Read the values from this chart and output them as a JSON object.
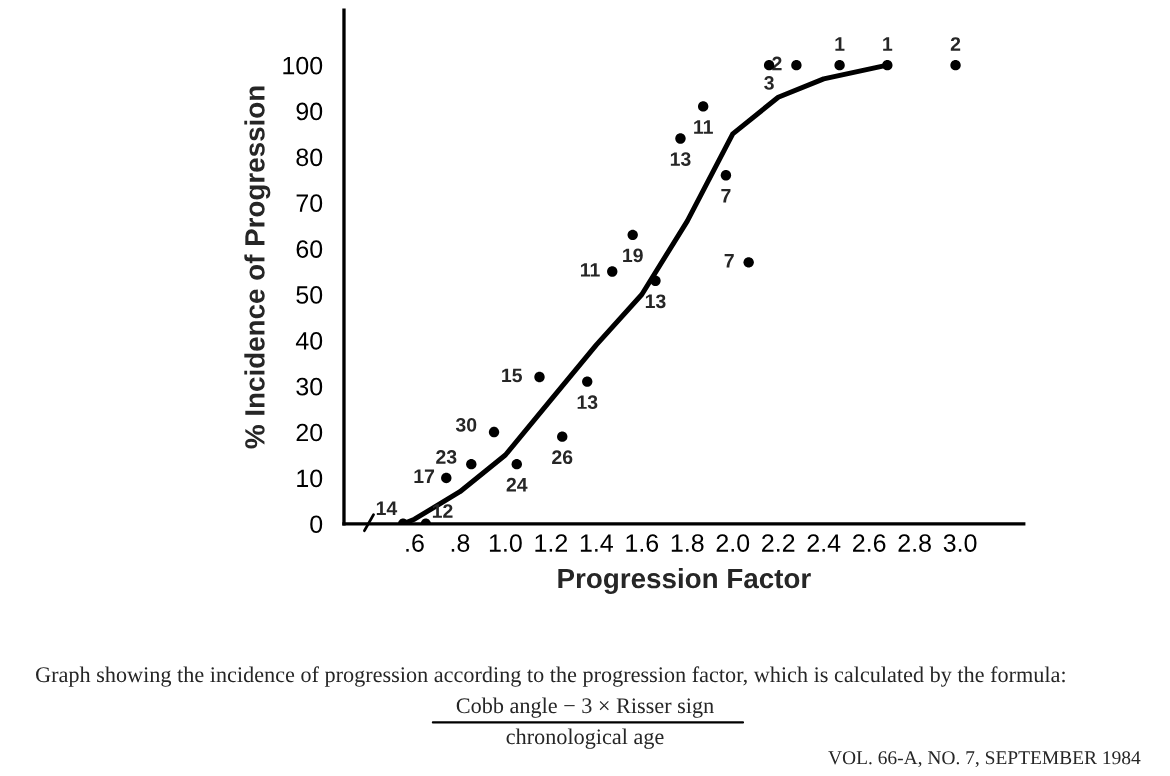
{
  "chart_data": {
    "type": "scatter",
    "xlabel": "Progression Factor",
    "ylabel": "% Incidence of Progression",
    "xlim": [
      0.29,
      3.28
    ],
    "ylim": [
      0,
      112
    ],
    "xticks": [
      {
        "value": 0.6,
        "label": ".6"
      },
      {
        "value": 0.8,
        "label": ".8"
      },
      {
        "value": 1.0,
        "label": "1.0"
      },
      {
        "value": 1.2,
        "label": "1.2"
      },
      {
        "value": 1.4,
        "label": "1.4"
      },
      {
        "value": 1.6,
        "label": "1.6"
      },
      {
        "value": 1.8,
        "label": "1.8"
      },
      {
        "value": 2.0,
        "label": "2.0"
      },
      {
        "value": 2.2,
        "label": "2.2"
      },
      {
        "value": 2.4,
        "label": "2.4"
      },
      {
        "value": 2.6,
        "label": "2.6"
      },
      {
        "value": 2.8,
        "label": "2.8"
      },
      {
        "value": 3.0,
        "label": "3.0"
      }
    ],
    "yticks": [
      0,
      10,
      20,
      30,
      40,
      50,
      60,
      70,
      80,
      90,
      100
    ],
    "grid": false,
    "legend": false,
    "series": [
      {
        "color": "#000000",
        "marker": "circle",
        "x": [
          0.55,
          0.65,
          0.74,
          0.85,
          0.95,
          1.05,
          1.15,
          1.25,
          1.36,
          1.47,
          1.56,
          1.66,
          1.77,
          1.87,
          1.97,
          2.07,
          2.16,
          2.28,
          2.47,
          2.68,
          2.98
        ],
        "values": [
          0,
          0,
          10,
          13,
          20,
          13,
          32,
          19,
          31,
          55,
          63,
          53,
          84,
          91,
          76,
          57,
          100,
          100,
          100,
          100,
          100
        ]
      },
      {
        "type": "line",
        "color": "#000000",
        "line_style": "solid",
        "x": [
          0.55,
          0.6,
          0.8,
          1.0,
          1.2,
          1.4,
          1.6,
          1.8,
          2.0,
          2.2,
          2.4,
          2.68
        ],
        "values": [
          0,
          1,
          7,
          15,
          27,
          39,
          50,
          66,
          85,
          93,
          97,
          100
        ]
      }
    ],
    "annotations": [
      {
        "text": "14",
        "x": 0.55,
        "y": 0
      },
      {
        "text": "12",
        "x": 0.65,
        "y": 0
      },
      {
        "text": "17",
        "x": 0.74,
        "y": 10
      },
      {
        "text": "23",
        "x": 0.85,
        "y": 13
      },
      {
        "text": "30",
        "x": 0.95,
        "y": 20
      },
      {
        "text": "24",
        "x": 1.05,
        "y": 13
      },
      {
        "text": "15",
        "x": 1.15,
        "y": 32
      },
      {
        "text": "26",
        "x": 1.25,
        "y": 19
      },
      {
        "text": "13",
        "x": 1.36,
        "y": 31
      },
      {
        "text": "11",
        "x": 1.47,
        "y": 55
      },
      {
        "text": "19",
        "x": 1.56,
        "y": 63
      },
      {
        "text": "13",
        "x": 1.66,
        "y": 53
      },
      {
        "text": "13",
        "x": 1.77,
        "y": 84
      },
      {
        "text": "11",
        "x": 1.87,
        "y": 91
      },
      {
        "text": "7",
        "x": 1.97,
        "y": 76
      },
      {
        "text": "7",
        "x": 2.07,
        "y": 57
      },
      {
        "text": "3",
        "x": 2.16,
        "y": 100
      },
      {
        "text": "2",
        "x": 2.28,
        "y": 100
      },
      {
        "text": "1",
        "x": 2.47,
        "y": 100
      },
      {
        "text": "1",
        "x": 2.68,
        "y": 100
      },
      {
        "text": "2",
        "x": 2.98,
        "y": 100
      },
      "Graph showing the incidence of progression according to the progression factor, which is calculated by the formula:",
      "Cobb angle − 3 × Risser sign",
      "chronological age",
      "VOL. 66-A, NO. 7, SEPTEMBER 1984"
    ]
  }
}
